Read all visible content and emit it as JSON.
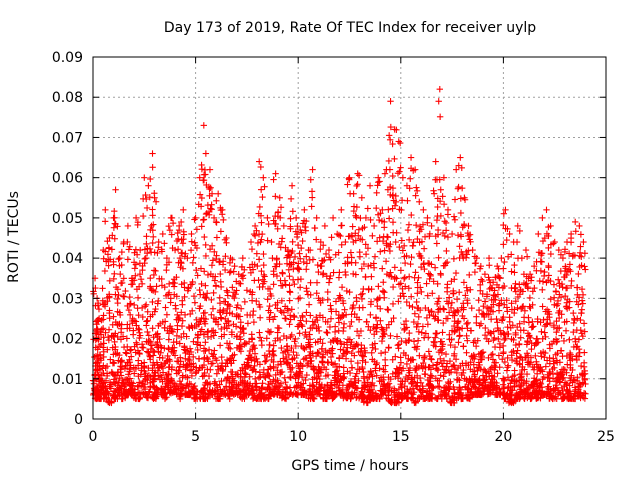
{
  "chart_data": {
    "type": "scatter",
    "title": "Day 173 of 2019, Rate Of TEC Index for receiver uylp",
    "xlabel": "GPS time / hours",
    "ylabel": "ROTI / TECUs",
    "xlim": [
      0,
      25
    ],
    "ylim": [
      0,
      0.09
    ],
    "xticks": [
      0,
      5,
      10,
      15,
      20,
      25
    ],
    "yticks": [
      0,
      0.01,
      0.02,
      0.03,
      0.04,
      0.05,
      0.06,
      0.07,
      0.08,
      0.09
    ],
    "grid": true,
    "marker": "plus",
    "color": "#ff0000",
    "series": [
      {
        "name": "ROTI",
        "x": [
          0.1,
          0.2,
          0.3,
          0.5,
          0.6,
          0.8,
          1.0,
          1.1,
          1.3,
          1.5,
          1.7,
          1.9,
          2.1,
          2.3,
          2.5,
          2.7,
          2.9,
          3.0,
          3.2,
          3.4,
          3.6,
          3.8,
          4.0,
          4.2,
          4.4,
          4.6,
          4.8,
          5.0,
          5.2,
          5.4,
          5.5,
          5.7,
          5.9,
          6.1,
          6.3,
          6.5,
          6.7,
          6.9,
          7.1,
          7.3,
          7.5,
          7.7,
          7.9,
          8.1,
          8.3,
          8.5,
          8.7,
          8.9,
          9.1,
          9.3,
          9.5,
          9.7,
          9.9,
          10.1,
          10.3,
          10.5,
          10.7,
          10.9,
          11.1,
          11.3,
          11.5,
          11.7,
          11.9,
          12.1,
          12.3,
          12.5,
          12.7,
          12.9,
          13.1,
          13.3,
          13.5,
          13.7,
          13.9,
          14.1,
          14.3,
          14.5,
          14.7,
          14.9,
          15.1,
          15.3,
          15.5,
          15.7,
          15.9,
          16.1,
          16.3,
          16.5,
          16.7,
          16.9,
          17.1,
          17.3,
          17.5,
          17.7,
          17.9,
          18.1,
          18.3,
          18.5,
          18.7,
          18.9,
          19.1,
          19.3,
          19.5,
          19.7,
          19.9,
          20.1,
          20.3,
          20.5,
          20.7,
          20.9,
          21.1,
          21.3,
          21.5,
          21.7,
          21.9,
          22.1,
          22.3,
          22.5,
          22.7,
          22.9,
          23.1,
          23.3,
          23.5,
          23.7,
          23.9
        ],
        "y": [
          0.035,
          0.03,
          0.025,
          0.042,
          0.052,
          0.045,
          0.05,
          0.057,
          0.04,
          0.044,
          0.048,
          0.035,
          0.05,
          0.042,
          0.06,
          0.058,
          0.066,
          0.055,
          0.044,
          0.046,
          0.04,
          0.05,
          0.042,
          0.048,
          0.052,
          0.04,
          0.046,
          0.05,
          0.06,
          0.073,
          0.066,
          0.062,
          0.05,
          0.056,
          0.052,
          0.045,
          0.04,
          0.038,
          0.036,
          0.04,
          0.032,
          0.044,
          0.048,
          0.064,
          0.06,
          0.05,
          0.044,
          0.061,
          0.055,
          0.048,
          0.042,
          0.058,
          0.05,
          0.047,
          0.052,
          0.042,
          0.062,
          0.05,
          0.044,
          0.048,
          0.042,
          0.05,
          0.046,
          0.052,
          0.044,
          0.06,
          0.056,
          0.061,
          0.055,
          0.05,
          0.058,
          0.048,
          0.06,
          0.052,
          0.062,
          0.079,
          0.072,
          0.069,
          0.06,
          0.058,
          0.065,
          0.062,
          0.054,
          0.052,
          0.05,
          0.048,
          0.064,
          0.082,
          0.06,
          0.052,
          0.046,
          0.062,
          0.065,
          0.055,
          0.048,
          0.042,
          0.04,
          0.038,
          0.036,
          0.04,
          0.034,
          0.038,
          0.04,
          0.052,
          0.046,
          0.044,
          0.048,
          0.04,
          0.042,
          0.036,
          0.038,
          0.046,
          0.05,
          0.052,
          0.048,
          0.044,
          0.042,
          0.04,
          0.044,
          0.046,
          0.049,
          0.048,
          0.044
        ],
        "baseline_min": [
          0.006,
          0.005,
          0.005,
          0.005,
          0.005,
          0.004,
          0.005,
          0.005,
          0.006,
          0.005,
          0.006,
          0.006,
          0.005,
          0.005,
          0.006,
          0.005,
          0.005,
          0.005,
          0.006,
          0.006,
          0.005,
          0.006,
          0.006,
          0.005,
          0.006,
          0.006,
          0.006,
          0.005,
          0.005,
          0.005,
          0.005,
          0.006,
          0.006,
          0.005,
          0.006,
          0.006,
          0.005,
          0.006,
          0.006,
          0.005,
          0.006,
          0.006,
          0.005,
          0.005,
          0.005,
          0.005,
          0.006,
          0.006,
          0.006,
          0.005,
          0.006,
          0.006,
          0.006,
          0.006,
          0.006,
          0.005,
          0.005,
          0.006,
          0.005,
          0.005,
          0.006,
          0.005,
          0.006,
          0.006,
          0.005,
          0.005,
          0.006,
          0.005,
          0.005,
          0.004,
          0.005,
          0.005,
          0.005,
          0.006,
          0.005,
          0.004,
          0.004,
          0.004,
          0.005,
          0.005,
          0.005,
          0.004,
          0.005,
          0.005,
          0.005,
          0.005,
          0.005,
          0.005,
          0.006,
          0.005,
          0.004,
          0.005,
          0.005,
          0.005,
          0.005,
          0.006,
          0.006,
          0.006,
          0.007,
          0.006,
          0.007,
          0.006,
          0.006,
          0.005,
          0.004,
          0.004,
          0.005,
          0.005,
          0.005,
          0.005,
          0.006,
          0.005,
          0.006,
          0.006,
          0.005,
          0.005,
          0.005,
          0.005,
          0.005,
          0.005,
          0.005,
          0.005,
          0.005
        ]
      }
    ]
  }
}
